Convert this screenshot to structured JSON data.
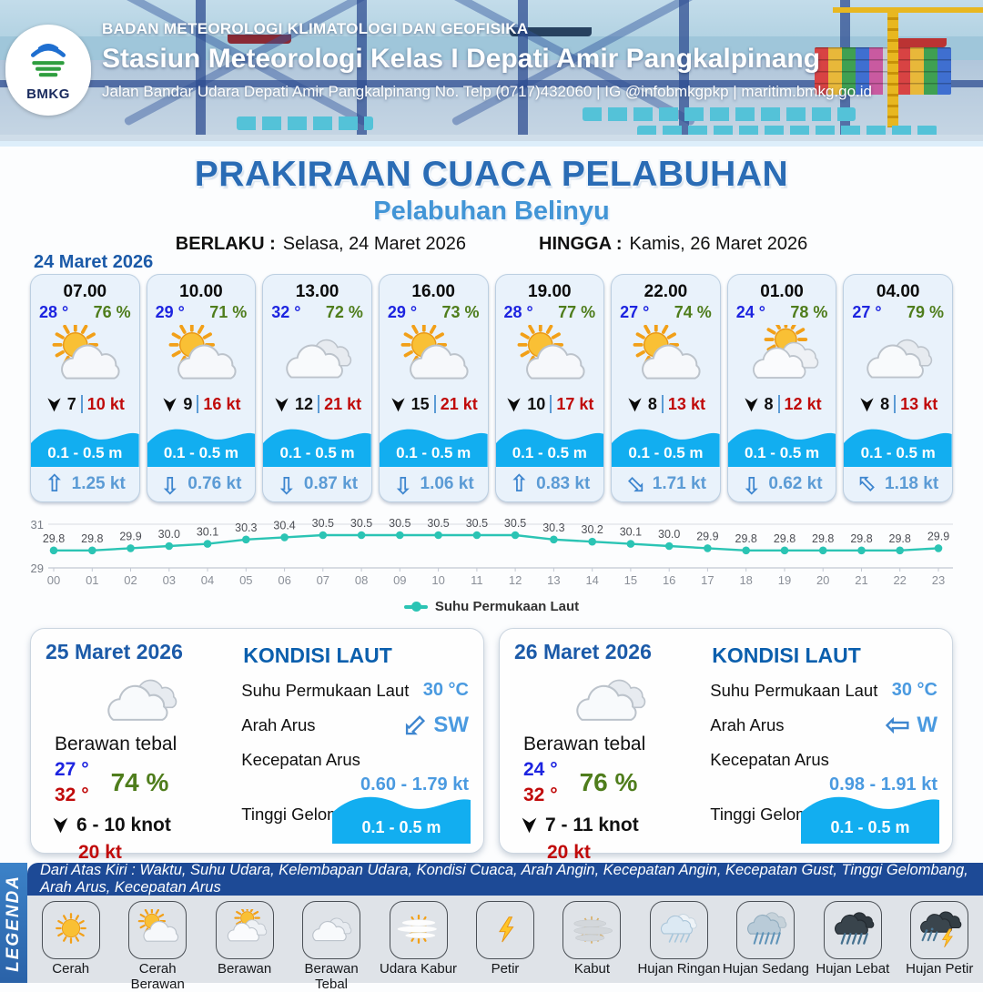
{
  "header": {
    "logo_text": "BMKG",
    "agency": "BADAN METEOROLOGI KLIMATOLOGI DAN GEOFISIKA",
    "station": "Stasiun Meteorologi Kelas I Depati Amir Pangkalpinang",
    "contact": "Jalan Bandar Udara Depati Amir Pangkalpinang No. Telp (0717)432060 | IG @infobmkgpkp | maritim.bmkg.go.id"
  },
  "title": {
    "main": "PRAKIRAAN CUACA PELABUHAN",
    "subtitle": "Pelabuhan Belinyu",
    "berlaku_label": "BERLAKU :",
    "berlaku_value": "Selasa, 24 Maret 2026",
    "hingga_label": "HINGGA :",
    "hingga_value": "Kamis, 26 Maret 2026"
  },
  "forecast": {
    "date": "24 Maret 2026",
    "cards": [
      {
        "time": "07.00",
        "temp": "28 °",
        "rh": "76 %",
        "icon": "cerah-berawan",
        "wind": "7",
        "gust": "10 kt",
        "wave": "0.1 - 0.5 m",
        "current": "1.25 kt",
        "current_dir": "N"
      },
      {
        "time": "10.00",
        "temp": "29 °",
        "rh": "71 %",
        "icon": "cerah-berawan",
        "wind": "9",
        "gust": "16 kt",
        "wave": "0.1 - 0.5 m",
        "current": "0.76 kt",
        "current_dir": "S"
      },
      {
        "time": "13.00",
        "temp": "32 °",
        "rh": "72 %",
        "icon": "berawan-tebal",
        "wind": "12",
        "gust": "21 kt",
        "wave": "0.1 - 0.5 m",
        "current": "0.87 kt",
        "current_dir": "S"
      },
      {
        "time": "16.00",
        "temp": "29 °",
        "rh": "73 %",
        "icon": "cerah-berawan",
        "wind": "15",
        "gust": "21 kt",
        "wave": "0.1 - 0.5 m",
        "current": "1.06 kt",
        "current_dir": "S"
      },
      {
        "time": "19.00",
        "temp": "28 °",
        "rh": "77 %",
        "icon": "cerah-berawan",
        "wind": "10",
        "gust": "17 kt",
        "wave": "0.1 - 0.5 m",
        "current": "0.83 kt",
        "current_dir": "N"
      },
      {
        "time": "22.00",
        "temp": "27 °",
        "rh": "74 %",
        "icon": "cerah-berawan",
        "wind": "8",
        "gust": "13 kt",
        "wave": "0.1 - 0.5 m",
        "current": "1.71 kt",
        "current_dir": "SE"
      },
      {
        "time": "01.00",
        "temp": "24 °",
        "rh": "78 %",
        "icon": "berawan",
        "wind": "8",
        "gust": "12 kt",
        "wave": "0.1 - 0.5 m",
        "current": "0.62 kt",
        "current_dir": "S"
      },
      {
        "time": "04.00",
        "temp": "27 °",
        "rh": "79 %",
        "icon": "berawan-tebal",
        "wind": "8",
        "gust": "13 kt",
        "wave": "0.1 - 0.5 m",
        "current": "1.18 kt",
        "current_dir": "NW"
      }
    ]
  },
  "chart_data": {
    "type": "line",
    "x": [
      "00",
      "01",
      "02",
      "03",
      "04",
      "05",
      "06",
      "07",
      "08",
      "09",
      "10",
      "11",
      "12",
      "13",
      "14",
      "15",
      "16",
      "17",
      "18",
      "19",
      "20",
      "21",
      "22",
      "23"
    ],
    "series": [
      {
        "name": "Suhu Permukaan Laut",
        "color": "#2bc4b4",
        "values": [
          29.8,
          29.8,
          29.9,
          30.0,
          30.1,
          30.3,
          30.4,
          30.5,
          30.5,
          30.5,
          30.5,
          30.5,
          30.5,
          30.3,
          30.2,
          30.1,
          30.0,
          29.9,
          29.8,
          29.8,
          29.8,
          29.8,
          29.8,
          29.9
        ]
      }
    ],
    "ylim": [
      29,
      31
    ],
    "yticks": [
      29,
      31
    ],
    "grid": true,
    "legend_position": "bottom"
  },
  "days": [
    {
      "date": "25 Maret 2026",
      "condition": "Berawan tebal",
      "icon": "berawan-tebal",
      "temp_min": "27 °",
      "temp_max": "32 °",
      "rh": "74 %",
      "wind_range": "6  - 10 knot",
      "gust": "20 kt",
      "sea": {
        "heading": "KONDISI LAUT",
        "sst_label": "Suhu Permukaan Laut",
        "sst_value": "30 °C",
        "dir_label": "Arah Arus",
        "dir_value": "SW",
        "dir_code": "SW",
        "speed_label": "Kecepatan Arus",
        "speed_value": "0.60  - 1.79 kt",
        "wave_label": "Tinggi Gelombang",
        "wave_value": "0.1 - 0.5 m"
      }
    },
    {
      "date": "26 Maret 2026",
      "condition": "Berawan tebal",
      "icon": "berawan-tebal",
      "temp_min": "24 °",
      "temp_max": "32 °",
      "rh": "76 %",
      "wind_range": "7  - 11 knot",
      "gust": "20 kt",
      "sea": {
        "heading": "KONDISI LAUT",
        "sst_label": "Suhu Permukaan Laut",
        "sst_value": "30 °C",
        "dir_label": "Arah Arus",
        "dir_value": "W",
        "dir_code": "W",
        "speed_label": "Kecepatan Arus",
        "speed_value": "0.98  - 1.91 kt",
        "wave_label": "Tinggi Gelombang",
        "wave_value": "0.1 - 0.5 m"
      }
    }
  ],
  "legend": {
    "title": "LEGENDA",
    "description": "Dari Atas Kiri : Waktu, Suhu Udara, Kelembapan Udara, Kondisi Cuaca, Arah Angin, Kecepatan Angin, Kecepatan Gust, Tinggi Gelombang, Arah Arus, Kecepatan Arus",
    "items": [
      {
        "label": "Cerah",
        "icon": "cerah"
      },
      {
        "label": "Cerah Berawan",
        "icon": "cerah-berawan"
      },
      {
        "label": "Berawan",
        "icon": "berawan"
      },
      {
        "label": "Berawan Tebal",
        "icon": "berawan-tebal"
      },
      {
        "label": "Udara Kabur",
        "icon": "udara-kabur"
      },
      {
        "label": "Petir",
        "icon": "petir"
      },
      {
        "label": "Kabut",
        "icon": "kabut"
      },
      {
        "label": "Hujan Ringan",
        "icon": "hujan-ringan"
      },
      {
        "label": "Hujan Sedang",
        "icon": "hujan-sedang"
      },
      {
        "label": "Hujan Lebat",
        "icon": "hujan-lebat"
      },
      {
        "label": "Hujan Petir",
        "icon": "hujan-petir"
      }
    ]
  },
  "colors": {
    "title_blue": "#2a6cb5",
    "subtitle_blue": "#4295d6",
    "date_blue": "#1b5aa8",
    "temp_blue": "#1d24e0",
    "humidity_green": "#4f7d1c",
    "gust_red": "#c00a0a",
    "wave_cyan": "#12aef0",
    "current_blue": "#5b9bd5",
    "sea_value_blue": "#4a9ae0",
    "chart_teal": "#2bc4b4",
    "legend_strip_blue": "#1d4a96",
    "legend_bar_blue": "#2f74bd"
  }
}
